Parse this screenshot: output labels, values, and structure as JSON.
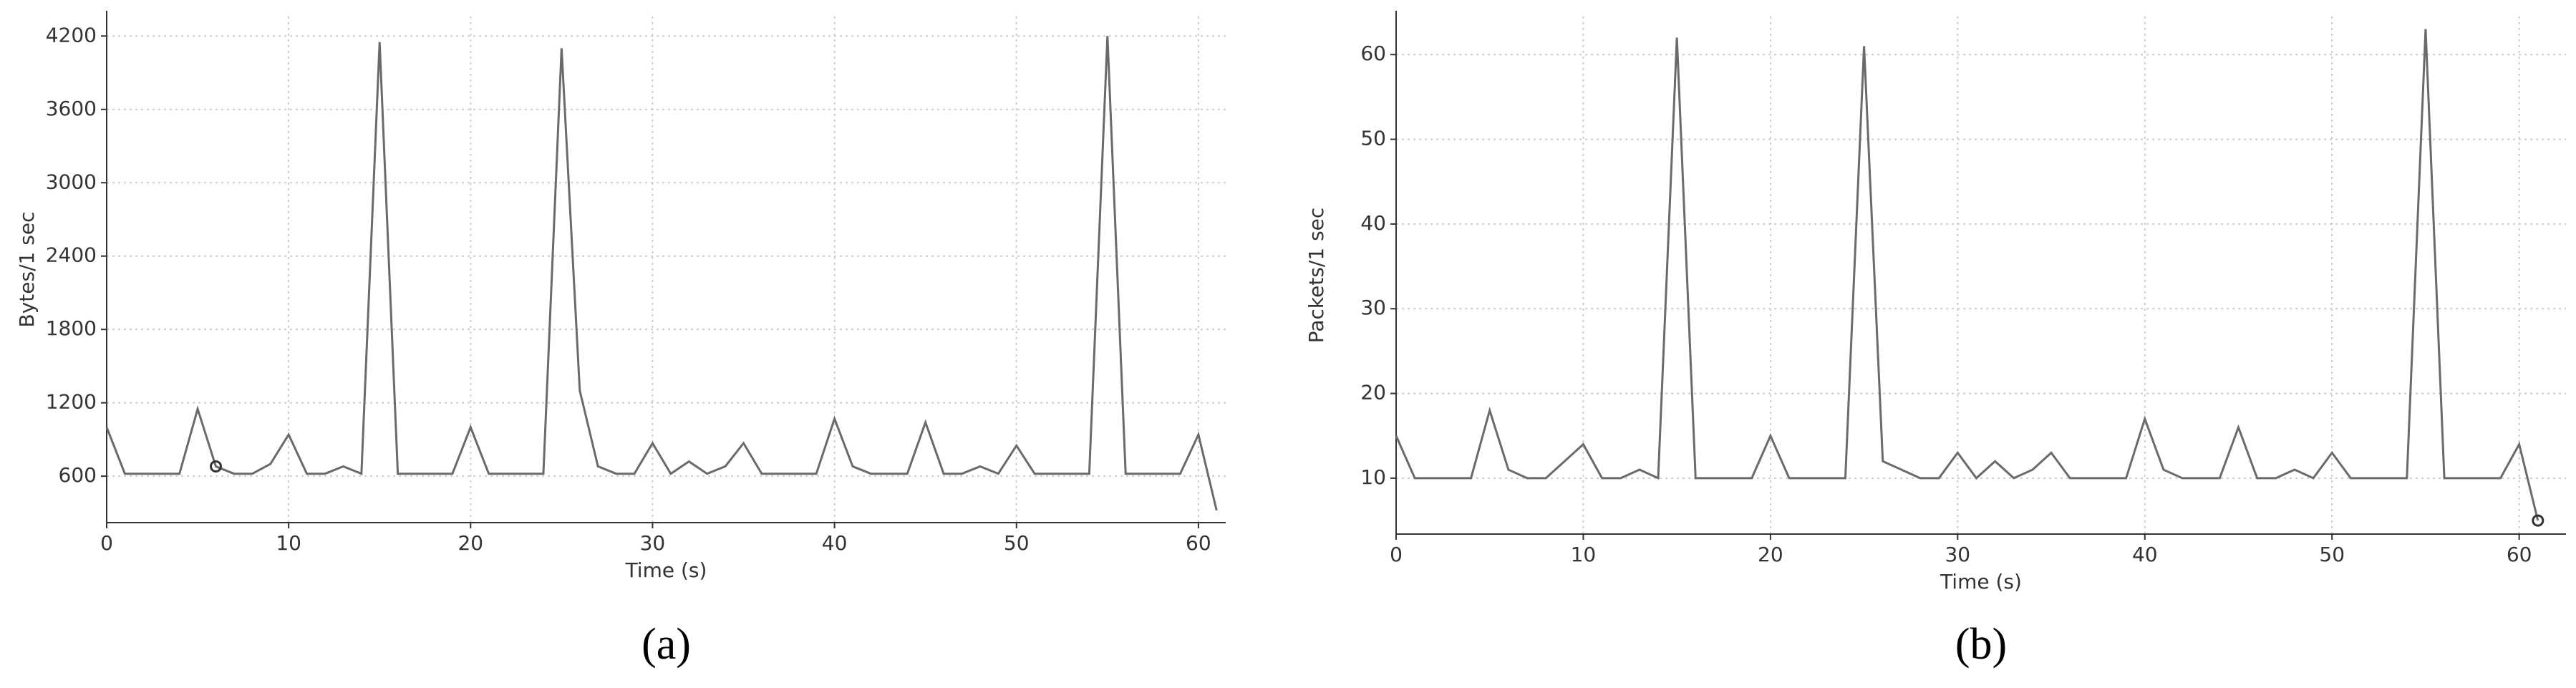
{
  "chart_data": [
    {
      "type": "line",
      "caption": "(a)",
      "x_label": "Time (s)",
      "y_label": "Bytes/1 sec",
      "x": [
        0,
        1,
        2,
        3,
        4,
        5,
        6,
        7,
        8,
        9,
        10,
        11,
        12,
        13,
        14,
        15,
        16,
        17,
        18,
        19,
        20,
        21,
        22,
        23,
        24,
        25,
        26,
        27,
        28,
        29,
        30,
        31,
        32,
        33,
        34,
        35,
        36,
        37,
        38,
        39,
        40,
        41,
        42,
        43,
        44,
        45,
        46,
        47,
        48,
        49,
        50,
        51,
        52,
        53,
        54,
        55,
        56,
        57,
        58,
        59,
        60,
        61
      ],
      "series": [
        {
          "name": "Bytes",
          "color": "#6a6a6a",
          "values": [
            1000,
            620,
            620,
            620,
            620,
            1150,
            680,
            620,
            620,
            700,
            940,
            620,
            620,
            680,
            620,
            4150,
            620,
            620,
            620,
            620,
            1000,
            620,
            620,
            620,
            620,
            4100,
            1300,
            680,
            620,
            620,
            870,
            620,
            720,
            620,
            680,
            870,
            620,
            620,
            620,
            620,
            1070,
            680,
            620,
            620,
            620,
            1040,
            620,
            620,
            680,
            620,
            850,
            620,
            620,
            620,
            620,
            4200,
            620,
            620,
            620,
            620,
            940,
            320
          ]
        }
      ],
      "marker_x": 6,
      "xlim": [
        0,
        61.5
      ],
      "ylim": [
        220,
        4360
      ],
      "xticks": [
        0,
        10,
        20,
        30,
        40,
        50,
        60
      ],
      "yticks": [
        600,
        1200,
        1800,
        2400,
        3000,
        3600,
        4200
      ],
      "grid": true
    },
    {
      "type": "line",
      "caption": "(b)",
      "x_label": "Time (s)",
      "y_label": "Packets/1 sec",
      "x": [
        0,
        1,
        2,
        3,
        4,
        5,
        6,
        7,
        8,
        9,
        10,
        11,
        12,
        13,
        14,
        15,
        16,
        17,
        18,
        19,
        20,
        21,
        22,
        23,
        24,
        25,
        26,
        27,
        28,
        29,
        30,
        31,
        32,
        33,
        34,
        35,
        36,
        37,
        38,
        39,
        40,
        41,
        42,
        43,
        44,
        45,
        46,
        47,
        48,
        49,
        50,
        51,
        52,
        53,
        54,
        55,
        56,
        57,
        58,
        59,
        60,
        61
      ],
      "series": [
        {
          "name": "Packets",
          "color": "#6a6a6a",
          "values": [
            15,
            10,
            10,
            10,
            10,
            18,
            11,
            10,
            10,
            12,
            14,
            10,
            10,
            11,
            10,
            62,
            10,
            10,
            10,
            10,
            15,
            10,
            10,
            10,
            10,
            61,
            12,
            11,
            10,
            10,
            13,
            10,
            12,
            10,
            11,
            13,
            10,
            10,
            10,
            10,
            17,
            11,
            10,
            10,
            10,
            16,
            10,
            10,
            11,
            10,
            13,
            10,
            10,
            10,
            10,
            63,
            10,
            10,
            10,
            10,
            14,
            5
          ]
        }
      ],
      "marker_x": 61,
      "xlim": [
        0,
        62.5
      ],
      "ylim": [
        3.4,
        64.5
      ],
      "xticks": [
        0,
        10,
        20,
        30,
        40,
        50,
        60
      ],
      "yticks": [
        10,
        20,
        30,
        40,
        50,
        60
      ],
      "grid": true
    }
  ]
}
